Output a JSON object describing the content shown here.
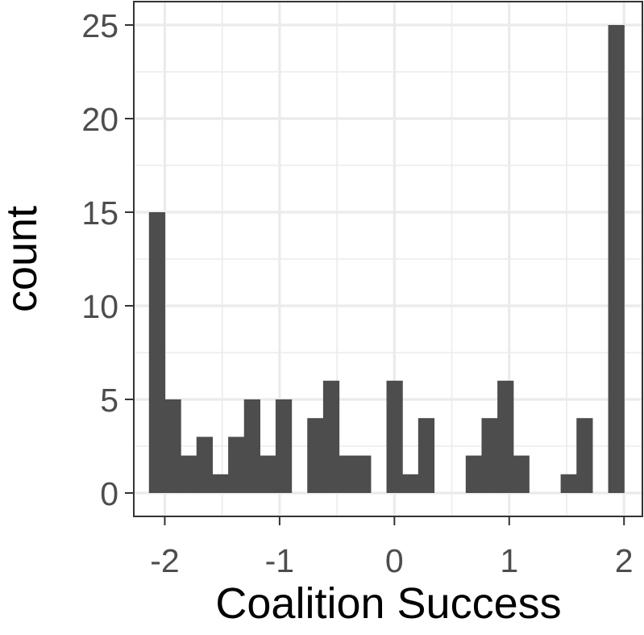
{
  "chart_data": {
    "type": "bar",
    "subtype": "histogram",
    "title": "",
    "xlabel": "Coalition Success",
    "ylabel": "count",
    "xlim": [
      -2.27,
      2.16
    ],
    "ylim": [
      -1.25,
      26.25
    ],
    "xticks": [
      -2,
      -1,
      0,
      1,
      2
    ],
    "xtick_labels": [
      "-2",
      "-1",
      "0",
      "1",
      "2"
    ],
    "yticks": [
      0,
      5,
      10,
      15,
      20,
      25
    ],
    "ytick_labels": [
      "0",
      "5",
      "10",
      "15",
      "20",
      "25"
    ],
    "grid": true,
    "bin_width": 0.1379,
    "bar_color": "#4d4d4d",
    "grid_color": "#ebebeb",
    "panel_border_color": "#333333",
    "bins": [
      {
        "x": -2.069,
        "count": 15
      },
      {
        "x": -1.931,
        "count": 5
      },
      {
        "x": -1.793,
        "count": 2
      },
      {
        "x": -1.655,
        "count": 3
      },
      {
        "x": -1.517,
        "count": 1
      },
      {
        "x": -1.379,
        "count": 3
      },
      {
        "x": -1.241,
        "count": 5
      },
      {
        "x": -1.103,
        "count": 2
      },
      {
        "x": -0.966,
        "count": 5
      },
      {
        "x": -0.828,
        "count": 0
      },
      {
        "x": -0.69,
        "count": 4
      },
      {
        "x": -0.552,
        "count": 6
      },
      {
        "x": -0.414,
        "count": 2
      },
      {
        "x": -0.276,
        "count": 2
      },
      {
        "x": -0.138,
        "count": 0
      },
      {
        "x": 0.0,
        "count": 6
      },
      {
        "x": 0.138,
        "count": 1
      },
      {
        "x": 0.276,
        "count": 4
      },
      {
        "x": 0.414,
        "count": 0
      },
      {
        "x": 0.552,
        "count": 0
      },
      {
        "x": 0.69,
        "count": 2
      },
      {
        "x": 0.828,
        "count": 4
      },
      {
        "x": 0.966,
        "count": 6
      },
      {
        "x": 1.103,
        "count": 2
      },
      {
        "x": 1.241,
        "count": 0
      },
      {
        "x": 1.379,
        "count": 0
      },
      {
        "x": 1.517,
        "count": 1
      },
      {
        "x": 1.655,
        "count": 4
      },
      {
        "x": 1.793,
        "count": 0
      },
      {
        "x": 1.931,
        "count": 25
      }
    ]
  }
}
